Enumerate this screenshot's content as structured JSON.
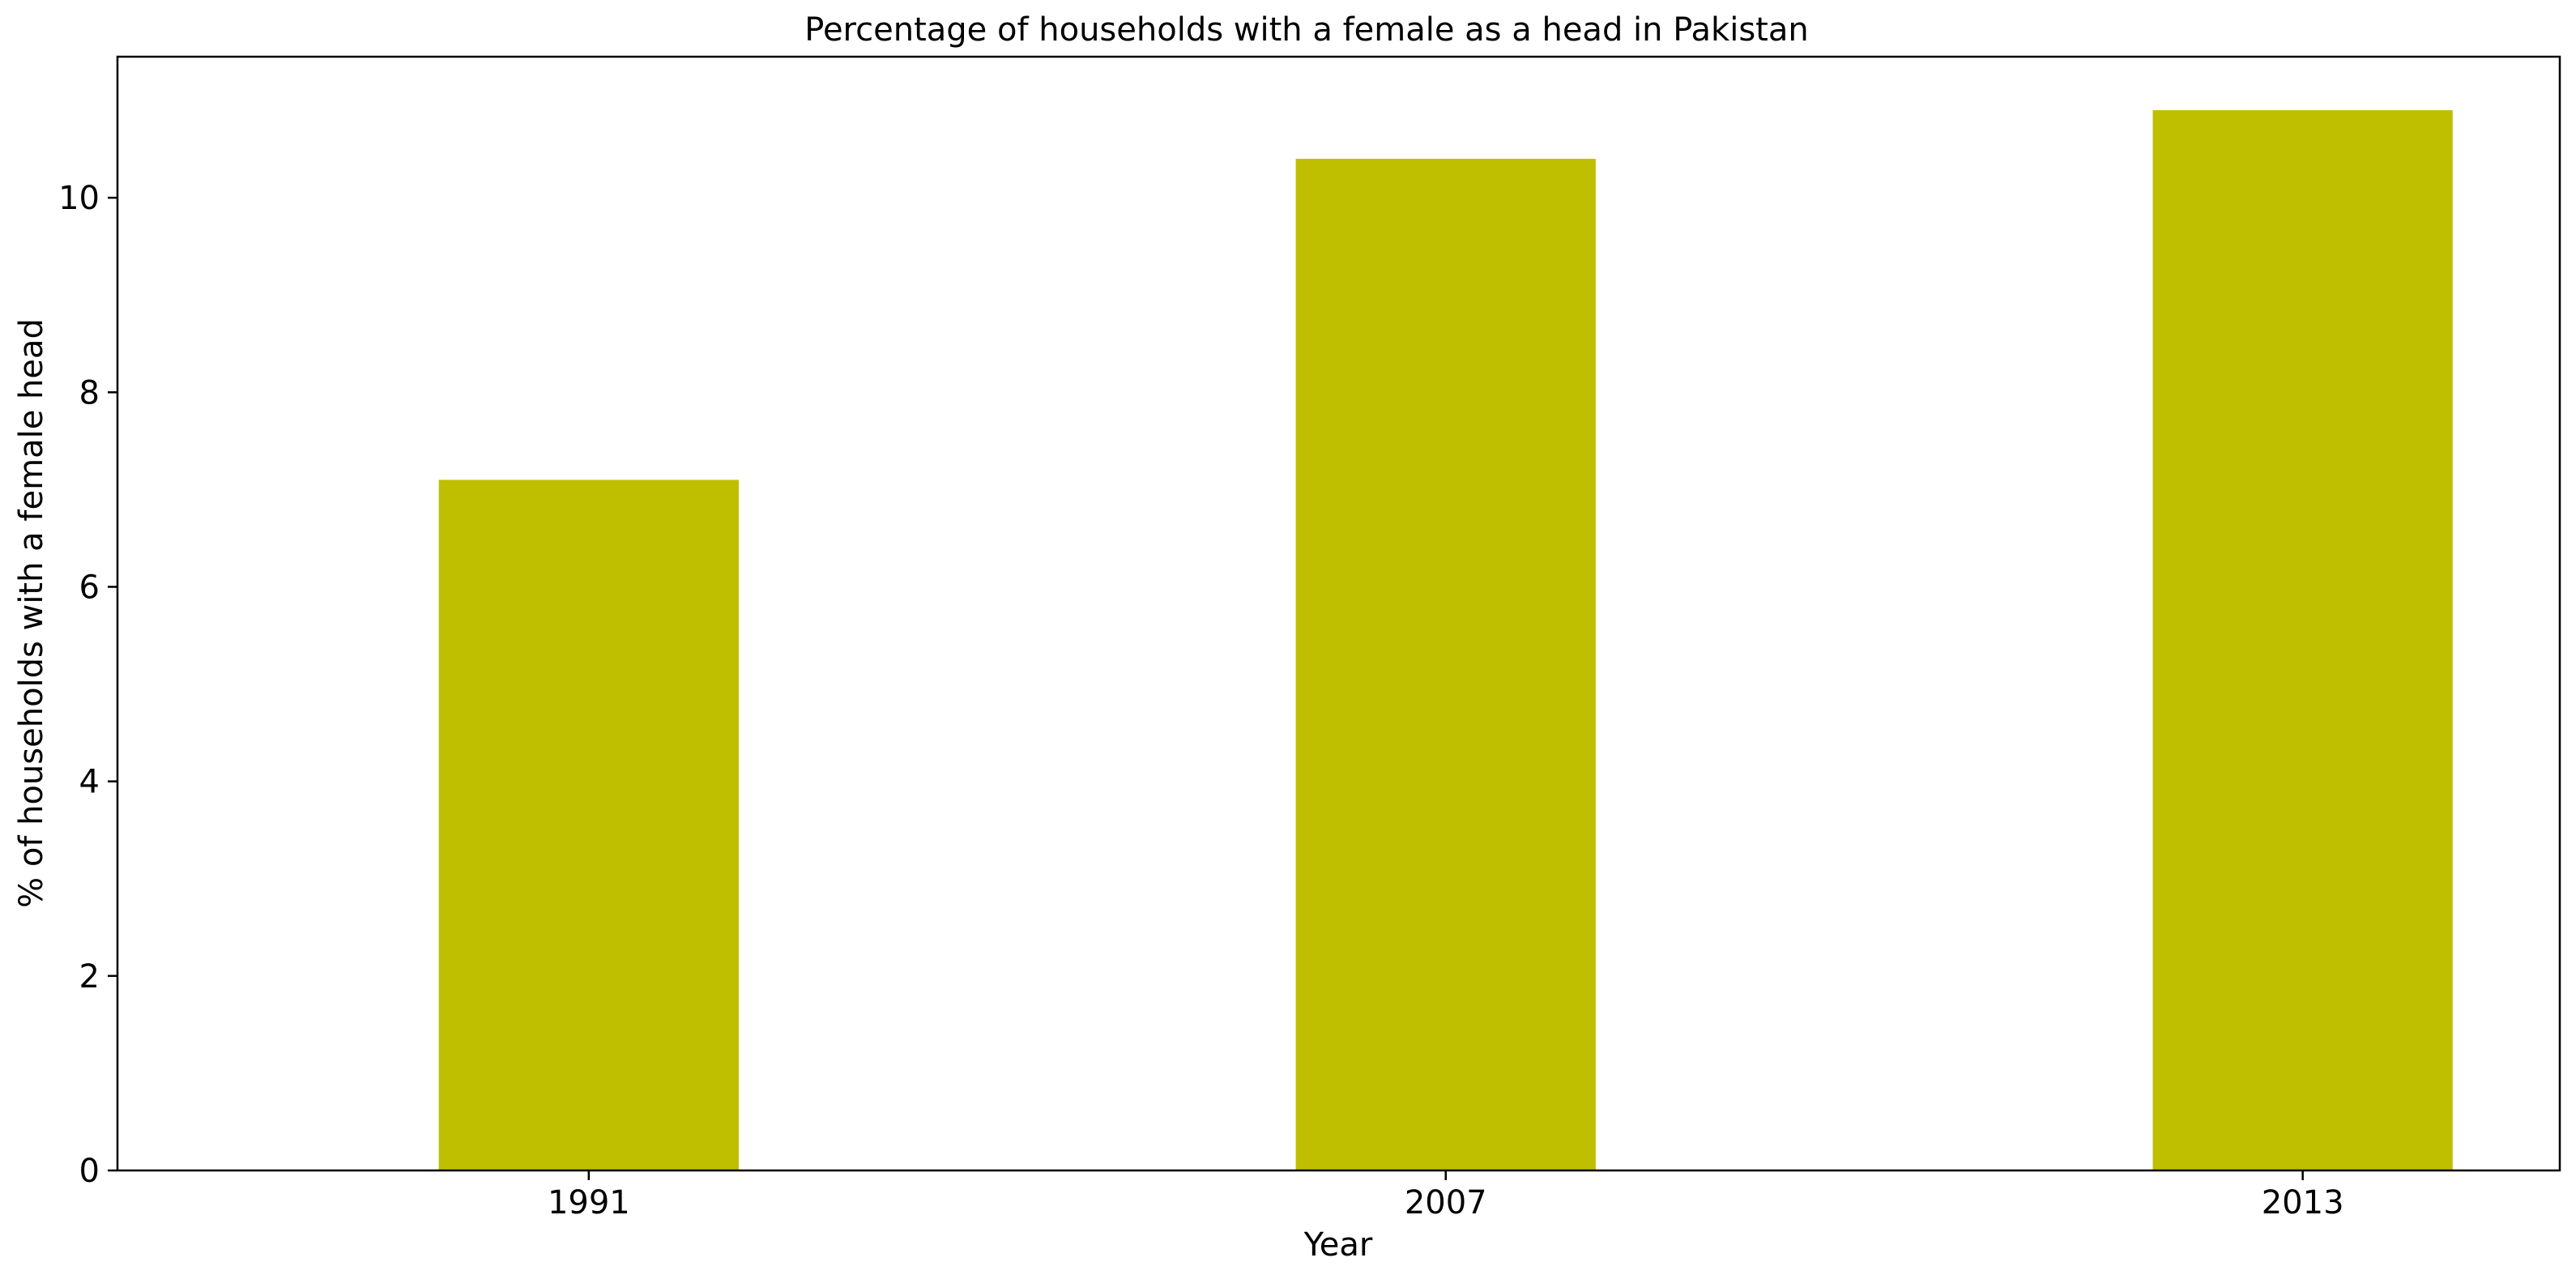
{
  "chart_data": {
    "type": "bar",
    "title": "Percentage of households with a female as a head in Pakistan",
    "xlabel": "Year",
    "ylabel": "% of households with a female head",
    "categories": [
      "1991",
      "2007",
      "2013"
    ],
    "values": [
      7.1,
      10.4,
      10.9
    ],
    "ylim": [
      0,
      11.45
    ],
    "yticks": [
      0,
      2,
      4,
      6,
      8,
      10
    ],
    "ytick_labels": [
      "0",
      "2",
      "4",
      "6",
      "8",
      "10"
    ],
    "grid": false,
    "legend": "none",
    "bar_color": "#bfbf00",
    "axis_color": "#000000",
    "background_color": "#ffffff"
  }
}
